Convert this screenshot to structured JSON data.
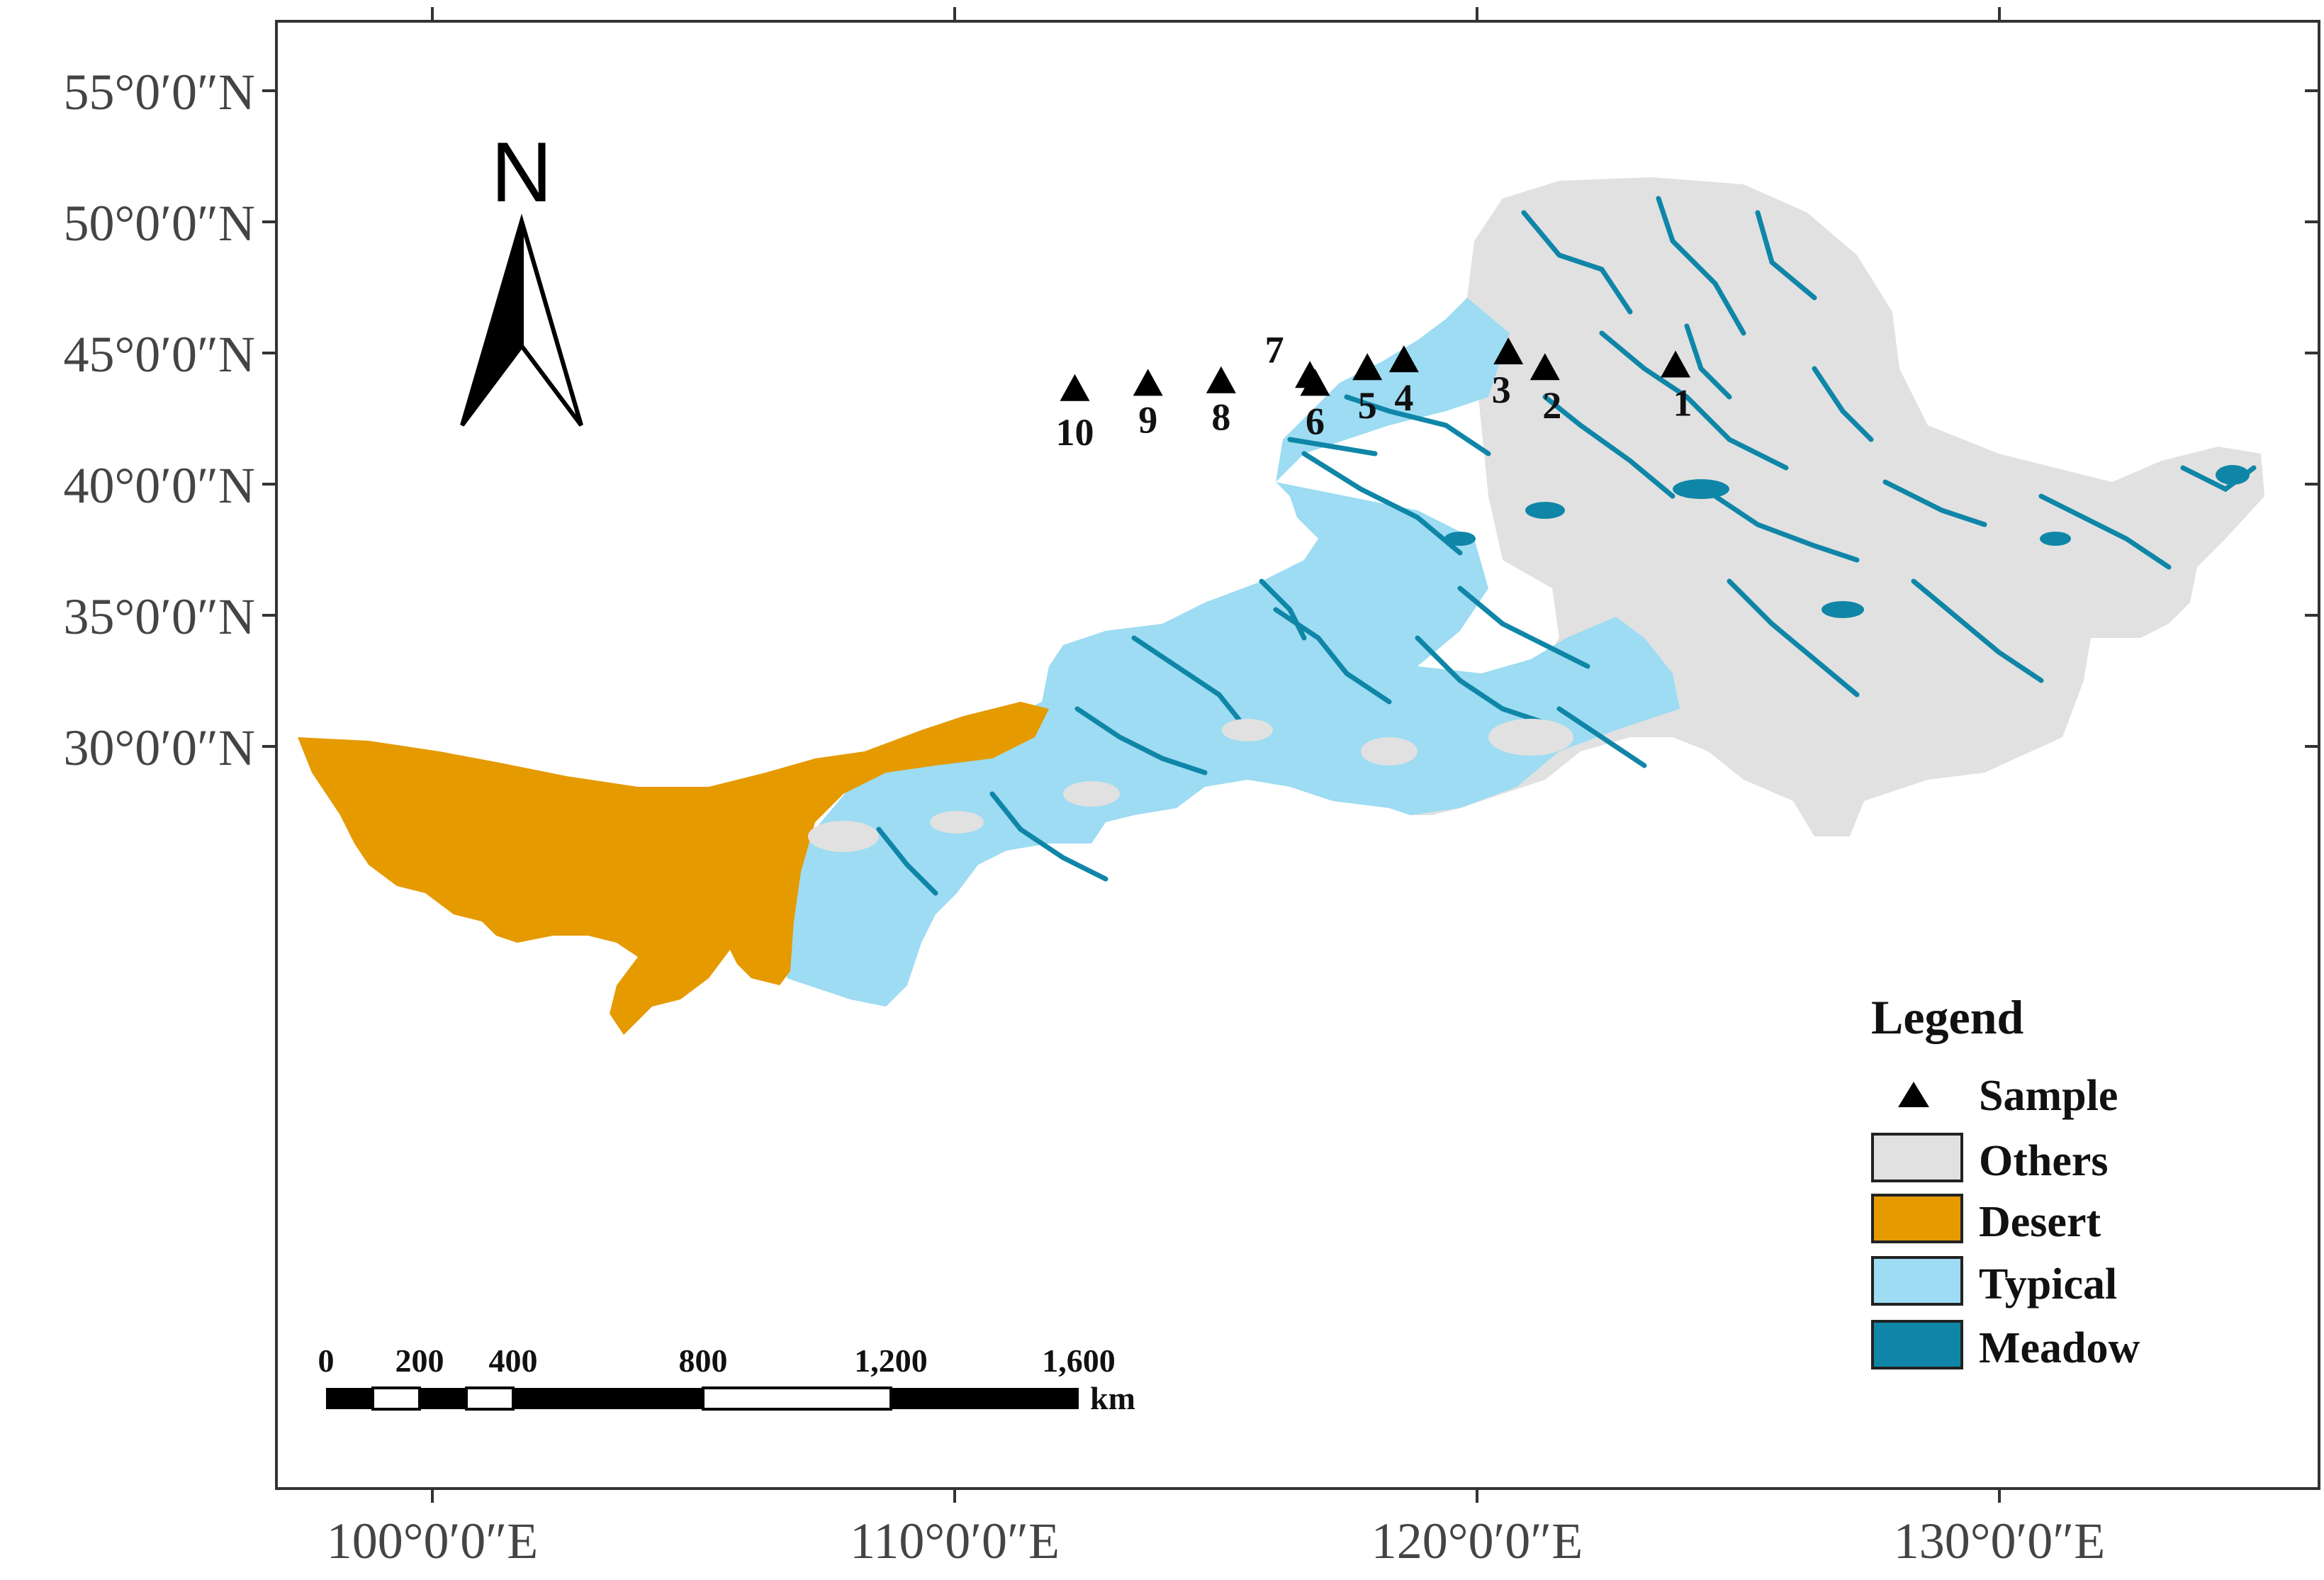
{
  "map": {
    "lat_ticks": [
      {
        "label": "55°0′0″N",
        "value": 55
      },
      {
        "label": "50°0′0″N",
        "value": 50
      },
      {
        "label": "45°0′0″N",
        "value": 45
      },
      {
        "label": "40°0′0″N",
        "value": 40
      },
      {
        "label": "35°0′0″N",
        "value": 35
      },
      {
        "label": "30°0′0″N",
        "value": 30
      }
    ],
    "lon_ticks": [
      {
        "label": "100°0′0″E",
        "value": 100
      },
      {
        "label": "110°0′0″E",
        "value": 110
      },
      {
        "label": "120°0′0″E",
        "value": 120
      },
      {
        "label": "130°0′0″E",
        "value": 130
      }
    ],
    "north_arrow": {
      "letter": "N"
    },
    "samples": [
      {
        "id": "1",
        "lon": 123.8,
        "lat": 44.5
      },
      {
        "id": "2",
        "lon": 121.3,
        "lat": 44.4
      },
      {
        "id": "3",
        "lon": 120.6,
        "lat": 45.0
      },
      {
        "id": "4",
        "lon": 118.6,
        "lat": 44.7
      },
      {
        "id": "5",
        "lon": 117.9,
        "lat": 44.4
      },
      {
        "id": "6",
        "lon": 116.9,
        "lat": 43.8
      },
      {
        "id": "7",
        "lon": 116.8,
        "lat": 44.1
      },
      {
        "id": "8",
        "lon": 115.1,
        "lat": 43.9
      },
      {
        "id": "9",
        "lon": 113.7,
        "lat": 43.8
      },
      {
        "id": "10",
        "lon": 112.3,
        "lat": 43.6
      }
    ],
    "legend": {
      "title": "Legend",
      "items": [
        {
          "label": "Sample",
          "symbol": "triangle",
          "color": "#000000"
        },
        {
          "label": "Others",
          "symbol": "box",
          "color": "#e1e1e1"
        },
        {
          "label": "Desert",
          "symbol": "box",
          "color": "#e59a00"
        },
        {
          "label": "Typical",
          "symbol": "box",
          "color": "#9ddcf2"
        },
        {
          "label": "Meadow",
          "symbol": "box",
          "color": "#0f86a8"
        }
      ]
    },
    "scale_bar": {
      "labels": [
        "0",
        "200",
        "400",
        "800",
        "1,200",
        "1,600"
      ],
      "unit": "km"
    },
    "colors": {
      "others": "#e1e1e1",
      "desert": "#e59a00",
      "typical": "#9ddcf2",
      "meadow": "#0f86a8",
      "frame": "#333333"
    }
  }
}
